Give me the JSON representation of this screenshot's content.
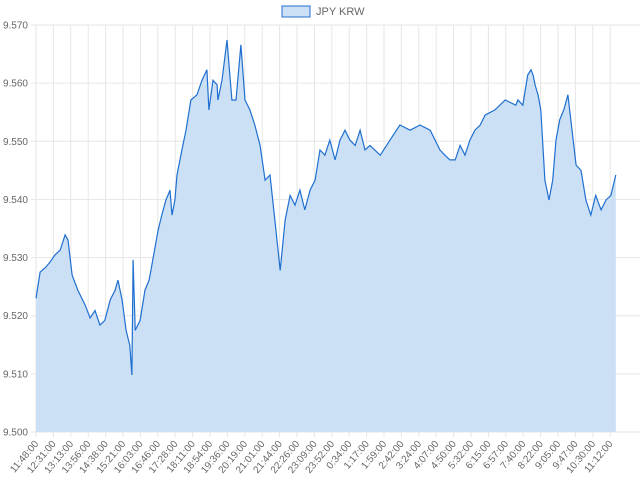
{
  "chart_data": {
    "type": "area",
    "title": "",
    "legend": {
      "label": "JPY KRW",
      "placement": "top-center"
    },
    "xlabel": "",
    "ylabel": "",
    "ylim": [
      9.5,
      9.57
    ],
    "yticks": [
      "9.500",
      "9.510",
      "9.520",
      "9.530",
      "9.540",
      "9.550",
      "9.560",
      "9.570"
    ],
    "xticks": [
      "11:48:00",
      "12:31:00",
      "13:13:00",
      "13:56:00",
      "14:38:00",
      "15:21:00",
      "16:03:00",
      "16:46:00",
      "17:28:00",
      "18:11:00",
      "18:54:00",
      "19:36:00",
      "20:19:00",
      "21:01:00",
      "21:44:00",
      "22:26:00",
      "23:09:00",
      "23:52:00",
      "0:34:00",
      "1:17:00",
      "1:59:00",
      "2:42:00",
      "3:24:00",
      "4:07:00",
      "4:50:00",
      "5:32:00",
      "6:15:00",
      "6:57:00",
      "7:40:00",
      "8:22:00",
      "9:05:00",
      "9:47:00",
      "10:30:00",
      "11:12:00"
    ],
    "x_unit": "minutes since 11:48:00",
    "xlim": [
      0,
      1474
    ],
    "grid": true,
    "colors": {
      "line": "#1f6fd0",
      "fill": "#cce0f5",
      "grid": "#e6e6e6"
    },
    "series": [
      {
        "name": "JPY KRW",
        "x": [
          0,
          10,
          22,
          34,
          46,
          59,
          71,
          78,
          88,
          102,
          120,
          132,
          144,
          156,
          168,
          181,
          193,
          200,
          210,
          220,
          229,
          234,
          237,
          242,
          254,
          266,
          276,
          285,
          298,
          307,
          317,
          322,
          327,
          332,
          339,
          344,
          356,
          366,
          378,
          393,
          405,
          417,
          422,
          432,
          442,
          444,
          454,
          466,
          478,
          488,
          500,
          510,
          522,
          534,
          547,
          559,
          571,
          583,
          596,
          608,
          620,
          632,
          644,
          656,
          669,
          681,
          693,
          705,
          717,
          730,
          742,
          754,
          766,
          779,
          791,
          803,
          815,
          840,
          864,
          888,
          913,
          937,
          962,
          974,
          986,
          998,
          1010,
          1023,
          1035,
          1047,
          1059,
          1071,
          1084,
          1096,
          1120,
          1145,
          1171,
          1176,
          1188,
          1200,
          1208,
          1213,
          1218,
          1225,
          1232,
          1242,
          1252,
          1261,
          1269,
          1278,
          1288,
          1298,
          1308,
          1318,
          1330,
          1342,
          1354,
          1366,
          1379,
          1391,
          1403,
          1415
        ],
        "values": [
          9.523,
          9.5275,
          9.5282,
          9.5292,
          9.5304,
          9.5313,
          9.5339,
          9.533,
          9.527,
          9.5244,
          9.5218,
          9.5196,
          9.5209,
          9.5184,
          9.5192,
          9.5227,
          9.5244,
          9.5261,
          9.5227,
          9.5175,
          9.5149,
          9.5098,
          9.5296,
          9.5175,
          9.5192,
          9.5244,
          9.5261,
          9.5296,
          9.5347,
          9.5373,
          9.5399,
          9.5407,
          9.5416,
          9.5373,
          9.5399,
          9.5442,
          9.5485,
          9.5519,
          9.5571,
          9.558,
          9.5605,
          9.5623,
          9.5554,
          9.5605,
          9.5597,
          9.5571,
          9.5605,
          9.5674,
          9.5571,
          9.5571,
          9.5666,
          9.5571,
          9.5554,
          9.5528,
          9.5493,
          9.5433,
          9.5442,
          9.5364,
          9.5278,
          9.5364,
          9.5407,
          9.539,
          9.5416,
          9.5382,
          9.5416,
          9.5433,
          9.5485,
          9.5476,
          9.5502,
          9.5468,
          9.5502,
          9.5519,
          9.5502,
          9.5493,
          9.5519,
          9.5485,
          9.5493,
          9.5476,
          9.5502,
          9.5528,
          9.5519,
          9.5528,
          9.5519,
          9.5502,
          9.5485,
          9.5476,
          9.5468,
          9.5468,
          9.5493,
          9.5476,
          9.5502,
          9.5519,
          9.5528,
          9.5545,
          9.5554,
          9.5571,
          9.5562,
          9.5571,
          9.5562,
          9.5614,
          9.5623,
          9.5614,
          9.5597,
          9.558,
          9.5554,
          9.5433,
          9.5399,
          9.5433,
          9.5502,
          9.5537,
          9.5554,
          9.558,
          9.5519,
          9.5459,
          9.545,
          9.5399,
          9.5373,
          9.5407,
          9.5382,
          9.5399,
          9.5407,
          9.5442
        ]
      }
    ]
  }
}
